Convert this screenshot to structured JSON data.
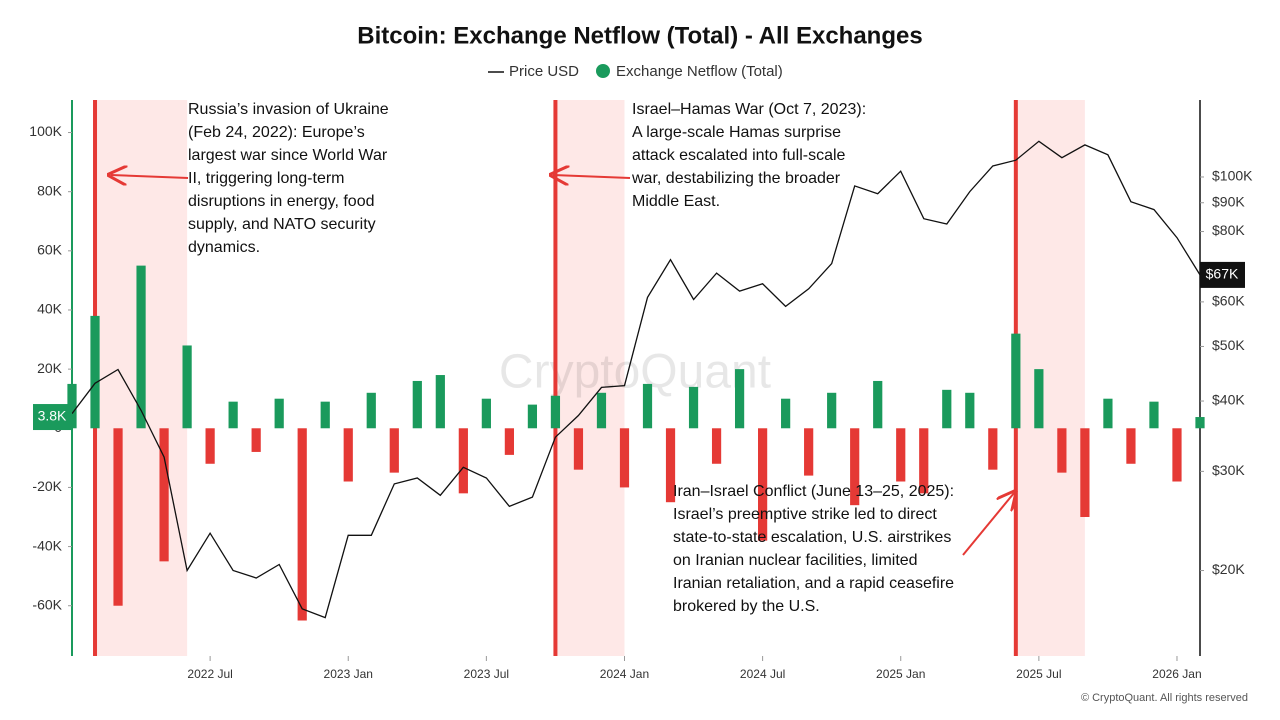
{
  "chart_data": {
    "type": "bar-line",
    "title": "Bitcoin: Exchange Netflow (Total) - All Exchanges",
    "x": [
      "2022-01",
      "2022-02",
      "2022-03",
      "2022-04",
      "2022-05",
      "2022-06",
      "2022-07",
      "2022-08",
      "2022-09",
      "2022-10",
      "2022-11",
      "2022-12",
      "2023-01",
      "2023-02",
      "2023-03",
      "2023-04",
      "2023-05",
      "2023-06",
      "2023-07",
      "2023-08",
      "2023-09",
      "2023-10",
      "2023-11",
      "2023-12",
      "2024-01",
      "2024-02",
      "2024-03",
      "2024-04",
      "2024-05",
      "2024-06",
      "2024-07",
      "2024-08",
      "2024-09",
      "2024-10",
      "2024-11",
      "2024-12",
      "2025-01",
      "2025-02",
      "2025-03",
      "2025-04",
      "2025-05",
      "2025-06",
      "2025-07",
      "2025-08",
      "2025-09",
      "2025-10",
      "2025-11",
      "2025-12",
      "2026-01",
      "2026-02"
    ],
    "series": [
      {
        "name": "Price USD",
        "color": "#111111",
        "axis": "y2",
        "values": [
          38000,
          43000,
          45500,
          38500,
          31800,
          20000,
          23300,
          20000,
          19400,
          20500,
          17100,
          16500,
          23100,
          23100,
          28500,
          29200,
          27200,
          30500,
          29200,
          26000,
          27000,
          34500,
          37700,
          42300,
          42600,
          61100,
          71300,
          60600,
          67500,
          62700,
          64600,
          58900,
          63300,
          70200,
          96400,
          93400,
          102400,
          84300,
          82500,
          94200,
          104600,
          107100,
          115700,
          108200,
          114000,
          109500,
          90400,
          87500,
          78000,
          67000
        ]
      },
      {
        "name": "Exchange Netflow (Total)",
        "color": "#1a9a5c",
        "negative_color": "#e53935",
        "values": [
          15000,
          38000,
          -60000,
          55000,
          -45000,
          28000,
          -12000,
          9000,
          -8000,
          10000,
          -65000,
          9000,
          -18000,
          12000,
          -15000,
          16000,
          18000,
          -22000,
          10000,
          -9000,
          8000,
          11000,
          -14000,
          12000,
          -20000,
          15000,
          -25000,
          14000,
          -12000,
          20000,
          -38000,
          10000,
          -16000,
          12000,
          -26000,
          16000,
          -18000,
          -22000,
          13000,
          12000,
          -14000,
          32000,
          20000,
          -15000,
          -30000,
          10000,
          -12000,
          9000,
          -18000,
          3800
        ]
      }
    ],
    "xlim": [
      "2022-01",
      "2026-02"
    ],
    "xticks": [
      {
        "value": "2022-07",
        "label": "2022 Jul"
      },
      {
        "value": "2023-01",
        "label": "2023 Jan"
      },
      {
        "value": "2023-07",
        "label": "2023 Jul"
      },
      {
        "value": "2024-01",
        "label": "2024 Jan"
      },
      {
        "value": "2024-07",
        "label": "2024 Jul"
      },
      {
        "value": "2025-01",
        "label": "2025 Jan"
      },
      {
        "value": "2025-07",
        "label": "2025 Jul"
      },
      {
        "value": "2026-01",
        "label": "2026 Jan"
      }
    ],
    "ylim": [
      -77000,
      111000
    ],
    "yticks": [
      {
        "value": -60000,
        "label": "-60K"
      },
      {
        "value": -40000,
        "label": "-40K"
      },
      {
        "value": -20000,
        "label": "-20K"
      },
      0,
      {
        "value": 20000,
        "label": "20K"
      },
      {
        "value": 40000,
        "label": "40K"
      },
      {
        "value": 60000,
        "label": "60K"
      },
      {
        "value": 80000,
        "label": "80K"
      },
      {
        "value": 100000,
        "label": "100K"
      }
    ],
    "y2lim": [
      14100,
      137000
    ],
    "y2_log": true,
    "y2ticks": [
      {
        "value": 20000,
        "label": "$20K"
      },
      {
        "value": 30000,
        "label": "$30K"
      },
      {
        "value": 40000,
        "label": "$40K"
      },
      {
        "value": 50000,
        "label": "$50K"
      },
      {
        "value": 60000,
        "label": "$60K"
      },
      {
        "value": 80000,
        "label": "$80K"
      },
      {
        "value": 90000,
        "label": "$90K"
      },
      {
        "value": 100000,
        "label": "$100K"
      }
    ],
    "latest_netflow": {
      "value": 3800,
      "label": "3.8K"
    },
    "latest_price": {
      "value": 67000,
      "label": "$67K"
    },
    "events": [
      {
        "x": "2022-02",
        "end": "2022-06",
        "text": "Russia’s invasion of Ukraine (Feb 24, 2022): Europe’s largest war since World War II, triggering long-term disruptions in energy, food supply, and NATO security dynamics."
      },
      {
        "x": "2023-10",
        "end": "2024-01",
        "text": "Israel–Hamas War (Oct 7, 2023): A large-scale Hamas surprise attack escalated into full-scale war, destabilizing the broader Middle East."
      },
      {
        "x": "2025-06",
        "end": "2025-09",
        "text": "Iran–Israel Conflict (June 13–25, 2025): Israel’s preemptive strike led to direct state-to-state escalation, U.S. airstrikes on Iranian nuclear facilities, limited Iranian retaliation, and a rapid ceasefire brokered by the U.S."
      }
    ],
    "watermark": "CryptoQuant",
    "credit": "© CryptoQuant. All rights reserved"
  }
}
